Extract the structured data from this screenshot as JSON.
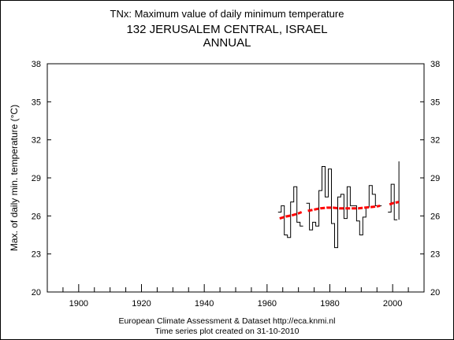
{
  "chart_data": {
    "type": "line",
    "title": "TNx: Maximum value of daily minimum temperature",
    "subtitle_line1": "132 JERUSALEM CENTRAL, ISRAEL",
    "subtitle_line2": "ANNUAL",
    "ylabel": "Max. of daily min. temperature (°C)",
    "xlabel": "",
    "xlim": [
      1890,
      2010
    ],
    "ylim": [
      20,
      38
    ],
    "x_ticks": [
      1900,
      1920,
      1940,
      1960,
      1980,
      2000
    ],
    "y_ticks": [
      20,
      23,
      26,
      29,
      32,
      35,
      38
    ],
    "grid": false,
    "series": [
      {
        "style": "step",
        "color": "#000000",
        "x": [
          1964,
          1965,
          1966,
          1967,
          1968,
          1969,
          1970,
          1971,
          1973,
          1974,
          1975,
          1976,
          1977,
          1978,
          1979,
          1980,
          1981,
          1982,
          1983,
          1984,
          1985,
          1986,
          1987,
          1988,
          1989,
          1990,
          1991,
          1992,
          1993,
          1994,
          1995,
          1996,
          1999,
          2000,
          2001
        ],
        "y": [
          26.3,
          26.8,
          24.5,
          24.3,
          27.1,
          28.3,
          25.5,
          25.2,
          27.0,
          24.9,
          25.5,
          25.2,
          28.0,
          29.9,
          27.5,
          29.7,
          25.4,
          23.5,
          27.5,
          27.7,
          25.8,
          28.3,
          26.8,
          26.8,
          25.6,
          24.5,
          25.9,
          26.7,
          28.4,
          27.7,
          26.8,
          26.8,
          26.3,
          28.5,
          25.7
        ]
      },
      {
        "style": "spike",
        "color": "#000000",
        "x": [
          2002
        ],
        "y": [
          30.3
        ]
      },
      {
        "style": "trend",
        "color": "#ff0000",
        "segments": [
          {
            "x": [
              1964,
              1966,
              1968,
              1970,
              1971
            ],
            "y": [
              25.8,
              25.95,
              26.05,
              26.2,
              26.3
            ]
          },
          {
            "x": [
              1973,
              1975,
              1977,
              1979,
              1981,
              1983,
              1985,
              1987,
              1989,
              1991,
              1993,
              1995,
              1996
            ],
            "y": [
              26.4,
              26.5,
              26.6,
              26.65,
              26.65,
              26.6,
              26.6,
              26.6,
              26.6,
              26.65,
              26.7,
              26.75,
              26.8
            ]
          },
          {
            "x": [
              1999,
              2000,
              2001,
              2002
            ],
            "y": [
              26.9,
              27.0,
              27.05,
              27.1
            ]
          }
        ]
      }
    ],
    "footer_line1": "European Climate Assessment & Dataset  http://eca.knmi.nl",
    "footer_line2": "Time series plot created on 31-10-2010"
  }
}
